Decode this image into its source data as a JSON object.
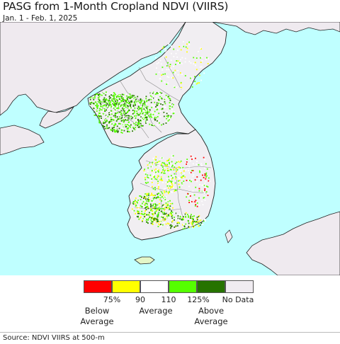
{
  "header": {
    "title": "PASG from 1-Month Cropland NDVI (VIIRS)",
    "subtitle": "Jan. 1 - Feb. 1, 2025"
  },
  "colors": {
    "sea": "#bfffff",
    "land_no_data": "#efeaef",
    "land_average": "#f1eef2",
    "border": "#222222",
    "province_border": "#8c8c8c"
  },
  "legend": {
    "swatches": [
      {
        "name": "below-75",
        "color": "#ff0000"
      },
      {
        "name": "75-90",
        "color": "#ffff00"
      },
      {
        "name": "90-110",
        "color": "#ffffff"
      },
      {
        "name": "110-125",
        "color": "#55ff00"
      },
      {
        "name": "above-125",
        "color": "#267300"
      },
      {
        "name": "no-data",
        "color": "#f0ecf1"
      }
    ],
    "ticks": [
      "75%",
      "90",
      "110",
      "125%"
    ],
    "no_data_label": "No Data",
    "below_average": "Below Average",
    "average": "Average",
    "above_average": "Above Average"
  },
  "footer": {
    "source": "Source: NDVI VIIRS at 500-m"
  }
}
